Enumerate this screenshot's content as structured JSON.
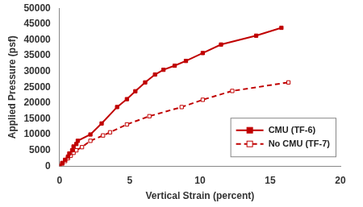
{
  "chart_data": {
    "type": "line",
    "x_label": "Vertical Strain (percent)",
    "y_label": "Applied Pressure (psf)",
    "xlim": [
      0,
      20
    ],
    "xticks": [
      0,
      5,
      10,
      15,
      20
    ],
    "ylim": [
      0,
      50000
    ],
    "yticks": [
      0,
      5000,
      10000,
      15000,
      20000,
      25000,
      30000,
      35000,
      40000,
      45000,
      50000
    ],
    "grid": false,
    "legend": "lower right",
    "series": [
      {
        "name": "CMU (TF-6)",
        "color": "#c00000",
        "marker": "filled-square",
        "line_style": "solid",
        "x": [
          0,
          0.2,
          0.4,
          0.6,
          0.7,
          0.9,
          1.0,
          1.2,
          1.3,
          2.2,
          3.0,
          4.1,
          4.8,
          5.4,
          6.1,
          6.8,
          7.4,
          8.2,
          9.0,
          10.2,
          11.5,
          14.0,
          15.8
        ],
        "values": [
          0,
          1000,
          2000,
          3000,
          4000,
          5000,
          6200,
          7000,
          8000,
          10000,
          13500,
          18700,
          21200,
          23700,
          26500,
          29000,
          30500,
          31800,
          33300,
          35800,
          38500,
          41300,
          43800
        ]
      },
      {
        "name": "No CMU (TF-7)",
        "color": "#c00000",
        "marker": "open-square",
        "line_style": "dashed",
        "x": [
          0,
          0.2,
          0.4,
          0.6,
          0.8,
          1.0,
          1.2,
          1.6,
          2.2,
          3.1,
          3.6,
          4.8,
          6.4,
          8.7,
          10.2,
          12.3,
          16.3
        ],
        "values": [
          0,
          800,
          1600,
          2500,
          3300,
          4200,
          5000,
          6000,
          8000,
          9700,
          10700,
          13200,
          15800,
          18700,
          21000,
          23800,
          26500
        ]
      }
    ]
  }
}
